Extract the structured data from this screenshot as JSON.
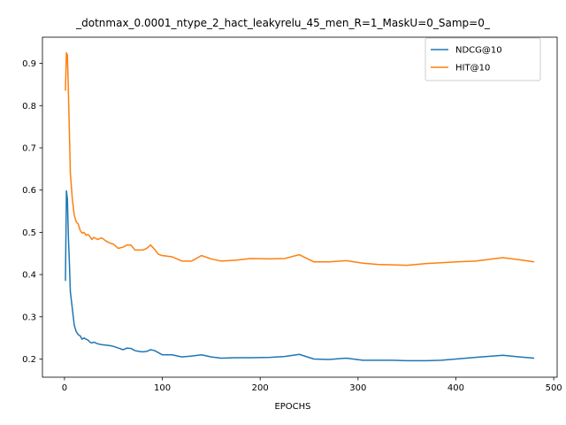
{
  "chart_data": {
    "type": "line",
    "title": "_dotnmax_0.0001_ntype_2_hact_leakyrelu_45_men_R=1_MaskU=0_Samp=0_",
    "xlabel": "EPOCHS",
    "ylabel": "",
    "xlim": [
      -22.5,
      503.5
    ],
    "ylim": [
      0.157,
      0.962
    ],
    "xticks": [
      0,
      100,
      200,
      300,
      400,
      500
    ],
    "yticks": [
      0.2,
      0.3,
      0.4,
      0.5,
      0.6,
      0.7,
      0.8,
      0.9
    ],
    "grid": false,
    "legend_position": "top-right",
    "series": [
      {
        "name": "NDCG@10",
        "color": "#1f77b4",
        "x": [
          1,
          2,
          3,
          4,
          5,
          6,
          8,
          10,
          12,
          14,
          16,
          18,
          20,
          22,
          24,
          26,
          28,
          30,
          34,
          38,
          42,
          46,
          50,
          55,
          60,
          64,
          68,
          72,
          76,
          80,
          84,
          88,
          92,
          96,
          100,
          110,
          120,
          130,
          140,
          150,
          160,
          175,
          190,
          210,
          225,
          240,
          255,
          270,
          288,
          305,
          320,
          335,
          350,
          370,
          385,
          400,
          420,
          448,
          465,
          480
        ],
        "y": [
          0.385,
          0.598,
          0.58,
          0.49,
          0.43,
          0.36,
          0.32,
          0.28,
          0.265,
          0.258,
          0.255,
          0.247,
          0.25,
          0.247,
          0.245,
          0.24,
          0.238,
          0.24,
          0.236,
          0.234,
          0.233,
          0.232,
          0.23,
          0.226,
          0.222,
          0.226,
          0.225,
          0.22,
          0.218,
          0.217,
          0.218,
          0.222,
          0.22,
          0.215,
          0.21,
          0.21,
          0.205,
          0.207,
          0.21,
          0.205,
          0.202,
          0.203,
          0.203,
          0.204,
          0.206,
          0.211,
          0.2,
          0.199,
          0.202,
          0.197,
          0.197,
          0.197,
          0.196,
          0.196,
          0.197,
          0.2,
          0.204,
          0.209,
          0.205,
          0.202
        ]
      },
      {
        "name": "HIT@10",
        "color": "#ff7f0e",
        "x": [
          1,
          2,
          3,
          4,
          5,
          6,
          8,
          10,
          12,
          14,
          16,
          18,
          20,
          22,
          24,
          26,
          28,
          30,
          34,
          38,
          42,
          46,
          50,
          55,
          60,
          64,
          68,
          72,
          76,
          80,
          84,
          88,
          92,
          96,
          100,
          110,
          120,
          130,
          140,
          150,
          160,
          175,
          190,
          210,
          225,
          240,
          255,
          270,
          288,
          305,
          320,
          335,
          350,
          370,
          385,
          400,
          420,
          448,
          465,
          480
        ],
        "y": [
          0.835,
          0.925,
          0.92,
          0.835,
          0.74,
          0.64,
          0.58,
          0.54,
          0.525,
          0.52,
          0.505,
          0.498,
          0.5,
          0.493,
          0.495,
          0.49,
          0.483,
          0.488,
          0.483,
          0.487,
          0.48,
          0.475,
          0.472,
          0.462,
          0.465,
          0.47,
          0.47,
          0.458,
          0.458,
          0.458,
          0.462,
          0.47,
          0.46,
          0.448,
          0.445,
          0.442,
          0.432,
          0.432,
          0.445,
          0.437,
          0.432,
          0.434,
          0.438,
          0.437,
          0.438,
          0.447,
          0.43,
          0.43,
          0.433,
          0.427,
          0.424,
          0.423,
          0.422,
          0.426,
          0.428,
          0.43,
          0.432,
          0.44,
          0.435,
          0.43
        ]
      }
    ]
  }
}
